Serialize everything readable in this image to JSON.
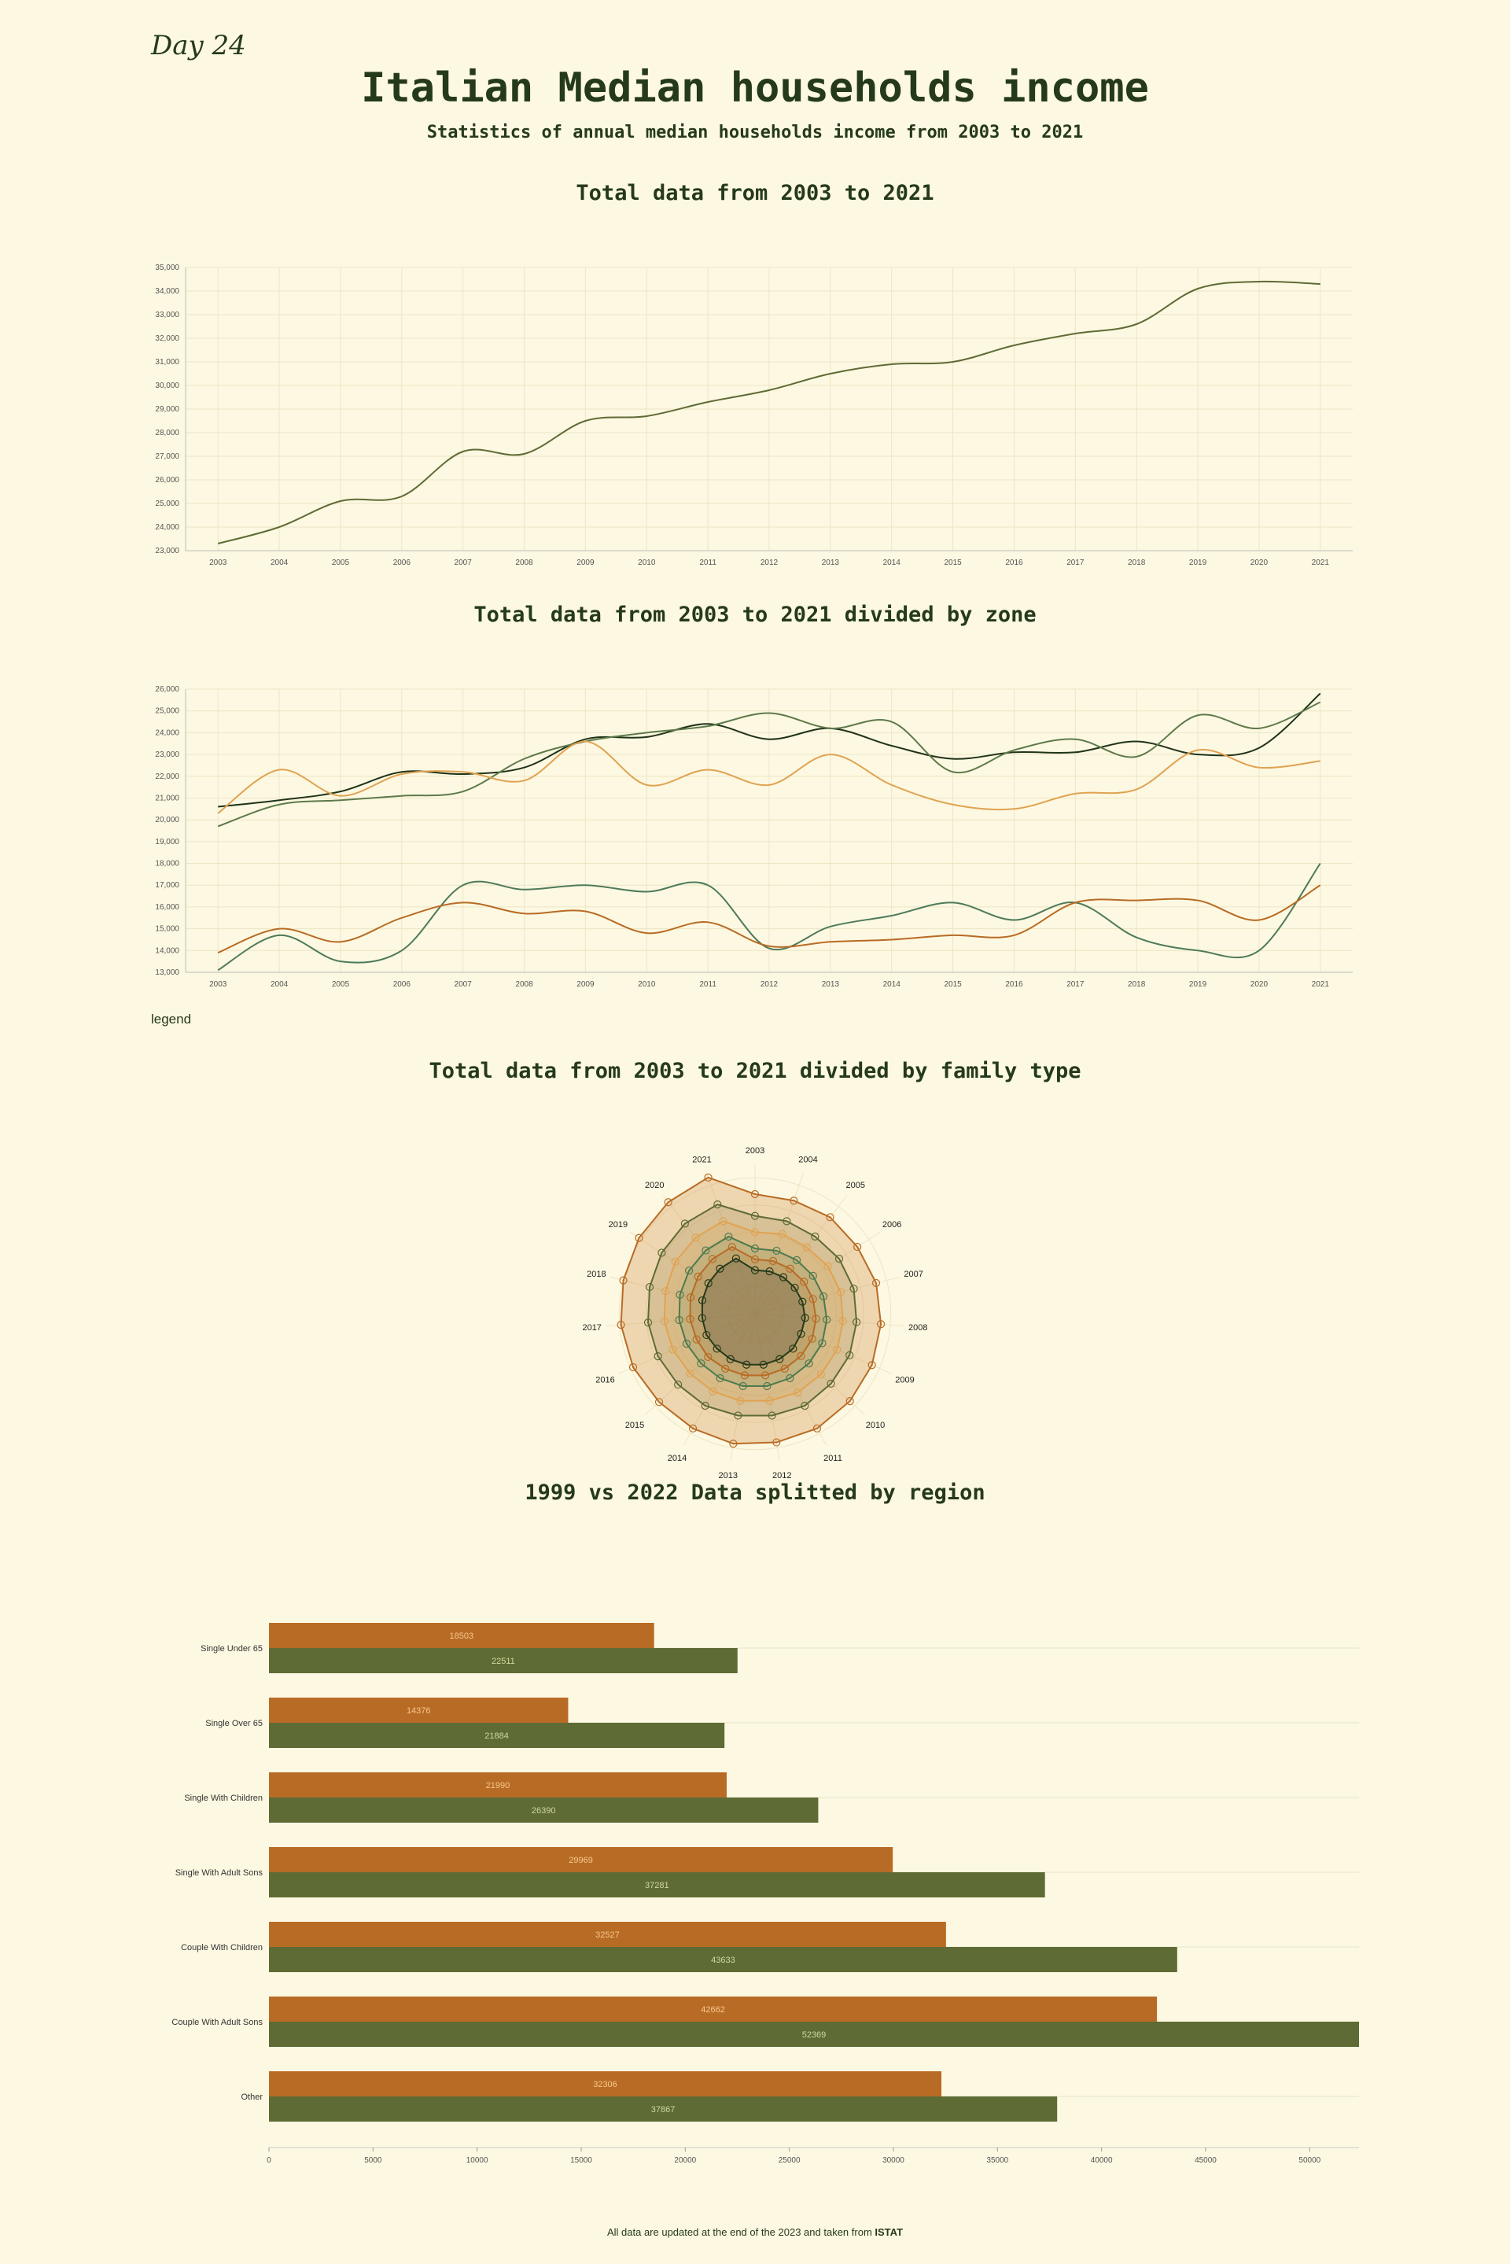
{
  "header": {
    "day_tag": "Day 24",
    "title": "Italian Median households income",
    "subtitle": "Statistics of annual median households income from 2003 to 2021"
  },
  "sections": {
    "total": "Total data from 2003 to 2021",
    "zone": "Total data from 2003 to 2021 divided by zone",
    "family": "Total data from 2003 to 2021 divided by family type",
    "region": "1999 vs 2022 Data splitted by region"
  },
  "legend_label": "legend",
  "footer": {
    "text": "All data are updated at the end of the 2023 and taken from ",
    "source": "ISTAT"
  },
  "colors": {
    "background": "#fdf8e1",
    "dark_green": "#253a1a",
    "olive": "#5e6b35",
    "green": "#4d7a4e",
    "orange": "#b86b25",
    "light_orange": "#e0a352",
    "grid": "#ece6c6"
  },
  "chart_data": [
    {
      "id": "total",
      "type": "line",
      "title": "Total data from 2003 to 2021",
      "x": [
        "2003",
        "2004",
        "2005",
        "2006",
        "2007",
        "2008",
        "2009",
        "2010",
        "2011",
        "2012",
        "2013",
        "2014",
        "2015",
        "2016",
        "2017",
        "2018",
        "2019",
        "2020",
        "2021"
      ],
      "ylim": [
        23000,
        35000
      ],
      "yticks": [
        23000,
        24000,
        25000,
        26000,
        27000,
        28000,
        29000,
        30000,
        31000,
        32000,
        33000,
        34000,
        35000
      ],
      "grid": true,
      "series": [
        {
          "values": [
            23300,
            24000,
            25100,
            25300,
            27200,
            27100,
            28500,
            28700,
            29300,
            29800,
            30500,
            30900,
            31000,
            31700,
            32200,
            32600,
            34100,
            34400,
            34300
          ]
        }
      ]
    },
    {
      "id": "zone",
      "type": "line",
      "title": "Total data from 2003 to 2021 divided by zone",
      "x": [
        "2003",
        "2004",
        "2005",
        "2006",
        "2007",
        "2008",
        "2009",
        "2010",
        "2011",
        "2012",
        "2013",
        "2014",
        "2015",
        "2016",
        "2017",
        "2018",
        "2019",
        "2020",
        "2021"
      ],
      "ylim": [
        13000,
        26000
      ],
      "yticks": [
        13000,
        14000,
        15000,
        16000,
        17000,
        18000,
        19000,
        20000,
        21000,
        22000,
        23000,
        24000,
        25000,
        26000
      ],
      "grid": true,
      "series": [
        {
          "color": "#1f3319",
          "values": [
            20600,
            20900,
            21300,
            22200,
            22100,
            22400,
            23700,
            23800,
            24400,
            23700,
            24200,
            23400,
            22800,
            23100,
            23100,
            23600,
            23000,
            23300,
            25800
          ]
        },
        {
          "color": "#5e7a4c",
          "values": [
            19700,
            20700,
            20900,
            21100,
            21300,
            22800,
            23600,
            24000,
            24300,
            24900,
            24200,
            24500,
            22200,
            23200,
            23700,
            22900,
            24800,
            24200,
            25400
          ]
        },
        {
          "color": "#e0a352",
          "values": [
            20300,
            22300,
            21100,
            22100,
            22200,
            21800,
            23600,
            21600,
            22300,
            21600,
            23000,
            21600,
            20700,
            20500,
            21200,
            21400,
            23200,
            22400,
            22700
          ]
        },
        {
          "color": "#4d7a5a",
          "values": [
            13100,
            14700,
            13500,
            14000,
            17000,
            16800,
            17000,
            16700,
            17000,
            14100,
            15100,
            15600,
            16200,
            15400,
            16200,
            14600,
            14000,
            14000,
            18000
          ]
        },
        {
          "color": "#b86b25",
          "values": [
            13900,
            15000,
            14400,
            15500,
            16200,
            15700,
            15800,
            14800,
            15300,
            14200,
            14400,
            14500,
            14700,
            14700,
            16200,
            16300,
            16300,
            15400,
            17000
          ]
        }
      ]
    },
    {
      "id": "family",
      "type": "radar",
      "title": "Total data from 2003 to 2021 divided by family type",
      "categories": [
        "2003",
        "2004",
        "2005",
        "2006",
        "2007",
        "2008",
        "2009",
        "2010",
        "2011",
        "2012",
        "2013",
        "2014",
        "2015",
        "2016",
        "2017",
        "2018",
        "2019",
        "2020",
        "2021"
      ],
      "rmax": 55000,
      "rings": [
        10000,
        20000,
        30000,
        40000,
        50000
      ],
      "series": [
        {
          "color": "#b86b25",
          "fill": "rgba(205,135,62,0.30)",
          "values": [
            44000,
            44000,
            45000,
            45000,
            46000,
            46500,
            47000,
            47500,
            48000,
            48000,
            48500,
            48000,
            48000,
            49000,
            49500,
            50000,
            51000,
            52000,
            53000
          ]
        },
        {
          "color": "#5e6b35",
          "fill": "rgba(140,120,60,0.22)",
          "values": [
            36000,
            36000,
            36000,
            37000,
            37500,
            37500,
            38000,
            38000,
            38500,
            38000,
            38000,
            38500,
            38500,
            39000,
            39500,
            40000,
            41000,
            42000,
            42500
          ]
        },
        {
          "color": "#e0a352",
          "fill": "rgba(224,163,82,0.20)",
          "values": [
            30000,
            31000,
            31000,
            32000,
            32500,
            32500,
            33000,
            33000,
            33000,
            32500,
            32500,
            32500,
            32500,
            33000,
            33500,
            34000,
            35000,
            35500,
            36000
          ]
        },
        {
          "color": "#4d7a4e",
          "fill": "rgba(120,140,90,0.22)",
          "values": [
            24000,
            24500,
            25000,
            25500,
            26000,
            26500,
            27000,
            27000,
            27000,
            27000,
            27000,
            27000,
            27000,
            27500,
            28000,
            28500,
            29000,
            29500,
            30000
          ]
        },
        {
          "color": "#b86b25",
          "fill": "rgba(184,107,37,0.18)",
          "values": [
            20000,
            20500,
            21000,
            21500,
            22000,
            22500,
            23000,
            23000,
            23000,
            23000,
            23000,
            23000,
            23500,
            23500,
            24000,
            24500,
            25000,
            25500,
            26000
          ]
        },
        {
          "color": "#253a1a",
          "fill": "rgba(80,80,60,0.28)",
          "values": [
            16000,
            16500,
            17000,
            17500,
            18000,
            18500,
            18500,
            19000,
            19000,
            19000,
            19000,
            19000,
            19000,
            19500,
            19500,
            20000,
            20500,
            21000,
            21500
          ]
        }
      ]
    },
    {
      "id": "region",
      "type": "bar",
      "orientation": "horizontal",
      "title": "1999 vs 2022 Data splitted by region",
      "categories": [
        "Single Under 65",
        "Single Over 65",
        "Single With Children",
        "Single With Adult Sons",
        "Couple With Children",
        "Couple With Adult Sons",
        "Other"
      ],
      "xlim": [
        0,
        52369
      ],
      "xticks": [
        0,
        5000,
        10000,
        15000,
        20000,
        25000,
        30000,
        35000,
        40000,
        45000,
        50000
      ],
      "series": [
        {
          "color": "#b86b25",
          "label_color": "#f6c98e",
          "values": [
            18503,
            14376,
            21990,
            29969,
            32527,
            42662,
            32306
          ]
        },
        {
          "color": "#5e6b35",
          "label_color": "#cfd8a0",
          "values": [
            22511,
            21884,
            26390,
            37281,
            43633,
            52369,
            37867
          ]
        }
      ]
    }
  ]
}
